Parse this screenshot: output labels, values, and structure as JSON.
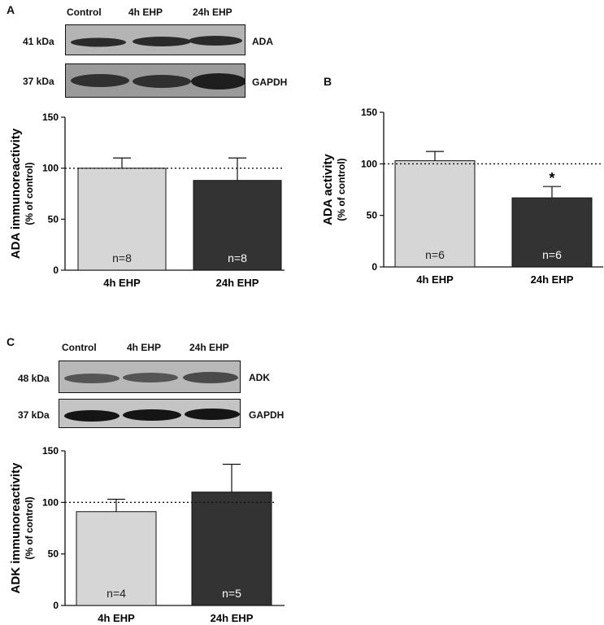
{
  "panel_a": {
    "letter": "A",
    "lanes": [
      "Control",
      "4h EHP",
      "24h EHP"
    ],
    "blots": [
      {
        "kda": "41 kDa",
        "protein": "ADA"
      },
      {
        "kda": "37 kDa",
        "protein": "GAPDH"
      }
    ]
  },
  "panel_b": {
    "letter": "B"
  },
  "panel_c": {
    "letter": "C",
    "lanes": [
      "Control",
      "4h EHP",
      "24h EHP"
    ],
    "blots": [
      {
        "kda": "48 kDa",
        "protein": "ADK"
      },
      {
        "kda": "37 kDa",
        "protein": "GAPDH"
      }
    ]
  },
  "colors": {
    "light_bar": "#d6d6d6",
    "dark_bar": "#333333",
    "axis": "#111111"
  },
  "chart_data": [
    {
      "id": "A",
      "type": "bar",
      "ylabel": "ADA immunoreactivity",
      "ylabel2": "(% of control)",
      "ylim": [
        0,
        150
      ],
      "yticks": [
        0,
        50,
        100,
        150
      ],
      "reference_line": 100,
      "categories": [
        "4h EHP",
        "24h EHP"
      ],
      "values": [
        100,
        88
      ],
      "errors": [
        10,
        22
      ],
      "n_labels": [
        "n=8",
        "n=8"
      ],
      "significance": [
        "",
        ""
      ]
    },
    {
      "id": "B",
      "type": "bar",
      "ylabel": "ADA activity",
      "ylabel2": "(% of control)",
      "ylim": [
        0,
        150
      ],
      "yticks": [
        0,
        50,
        100,
        150
      ],
      "reference_line": 100,
      "categories": [
        "4h EHP",
        "24h EHP"
      ],
      "values": [
        103,
        67
      ],
      "errors": [
        9,
        11
      ],
      "n_labels": [
        "n=6",
        "n=6"
      ],
      "significance": [
        "",
        "*"
      ]
    },
    {
      "id": "C",
      "type": "bar",
      "ylabel": "ADK immunoreactivity",
      "ylabel2": "(% of control)",
      "ylim": [
        0,
        150
      ],
      "yticks": [
        0,
        50,
        100,
        150
      ],
      "reference_line": 100,
      "categories": [
        "4h EHP",
        "24h EHP"
      ],
      "values": [
        91,
        110
      ],
      "errors": [
        12,
        27
      ],
      "n_labels": [
        "n=4",
        "n=5"
      ],
      "significance": [
        "",
        ""
      ]
    }
  ]
}
